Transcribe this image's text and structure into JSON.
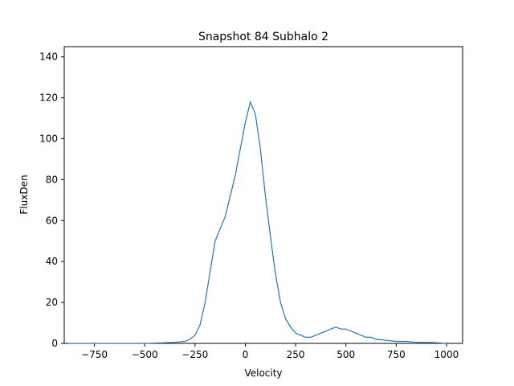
{
  "chart_data": {
    "type": "line",
    "title": "Snapshot 84 Subhalo 2",
    "xlabel": "Velocity",
    "ylabel": "FluxDen",
    "xlim": [
      -900,
      1080
    ],
    "ylim": [
      0,
      145
    ],
    "xticks": [
      -750,
      -500,
      -250,
      0,
      250,
      500,
      750,
      1000
    ],
    "yticks": [
      0,
      20,
      40,
      60,
      80,
      100,
      120,
      140
    ],
    "xtick_labels": [
      "−750",
      "−500",
      "−250",
      "0",
      "250",
      "500",
      "750",
      "1000"
    ],
    "ytick_labels": [
      "0",
      "20",
      "40",
      "60",
      "80",
      "100",
      "120",
      "140"
    ],
    "grid": false,
    "series_color": "#1f77b4",
    "series": [
      {
        "x": [
          -880,
          -700,
          -500,
          -400,
          -350,
          -300,
          -275,
          -250,
          -225,
          -200,
          -175,
          -150,
          -125,
          -100,
          -75,
          -50,
          -25,
          0,
          25,
          50,
          75,
          100,
          125,
          150,
          175,
          200,
          225,
          250,
          275,
          300,
          325,
          350,
          375,
          400,
          425,
          450,
          475,
          500,
          525,
          550,
          575,
          600,
          625,
          650,
          700,
          750,
          800,
          850,
          900,
          950,
          1000
        ],
        "y": [
          0,
          0,
          0,
          0.3,
          0.5,
          1,
          2,
          4,
          9,
          20,
          35,
          50,
          56,
          62,
          72,
          82,
          95,
          108,
          118,
          112,
          95,
          72,
          52,
          34,
          20,
          12,
          8,
          5,
          4,
          3,
          3,
          4,
          5,
          6,
          7,
          8,
          7,
          7,
          6,
          5,
          4,
          3,
          3,
          2,
          1.5,
          1,
          1,
          0.5,
          0.5,
          0.3,
          0
        ]
      }
    ]
  }
}
